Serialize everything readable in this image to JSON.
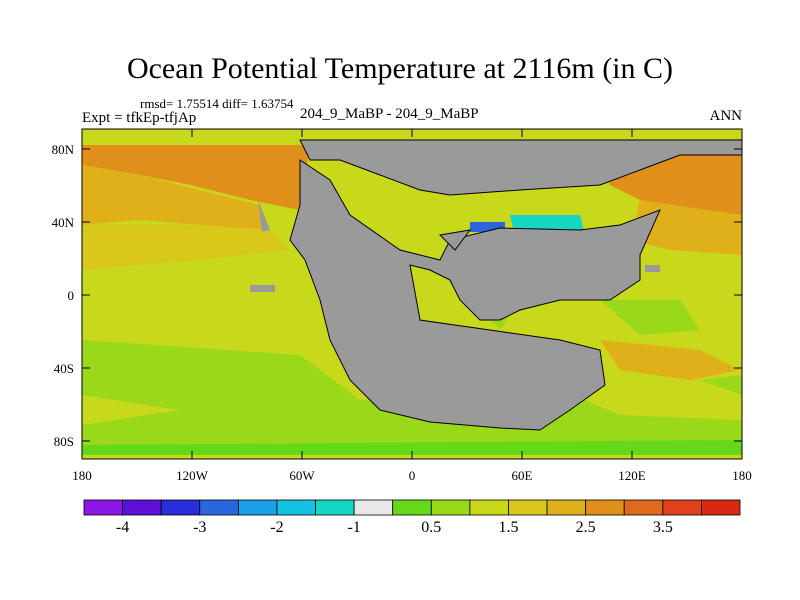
{
  "title": "Ocean Potential Temperature at 2116m (in C)",
  "stats_line": "rmsd= 1.75514  diff= 1.63754",
  "left_subtitle": "Expt = tfkEp-tfjAp",
  "center_subtitle": "204_9_MaBP - 204_9_MaBP",
  "right_subtitle": "ANN",
  "y_ticks": [
    "80N",
    "40N",
    "0",
    "40S",
    "80S"
  ],
  "x_ticks": [
    "180",
    "120W",
    "60W",
    "0",
    "60E",
    "120E",
    "180"
  ],
  "colorbar": {
    "colors": [
      "#8a17e6",
      "#5c10d6",
      "#2a2ed8",
      "#2a66e0",
      "#1aa0e6",
      "#12c2e0",
      "#16d6c4",
      "#e8e8e8",
      "#66d81a",
      "#9ad81a",
      "#c8d81a",
      "#d8c81a",
      "#e0b01a",
      "#e0901a",
      "#e06a1a",
      "#e0401a",
      "#d82a10"
    ],
    "labels": [
      "-4",
      "-3",
      "-2",
      "-1",
      "0.5",
      "1.5",
      "2.5",
      "3.5"
    ]
  }
}
